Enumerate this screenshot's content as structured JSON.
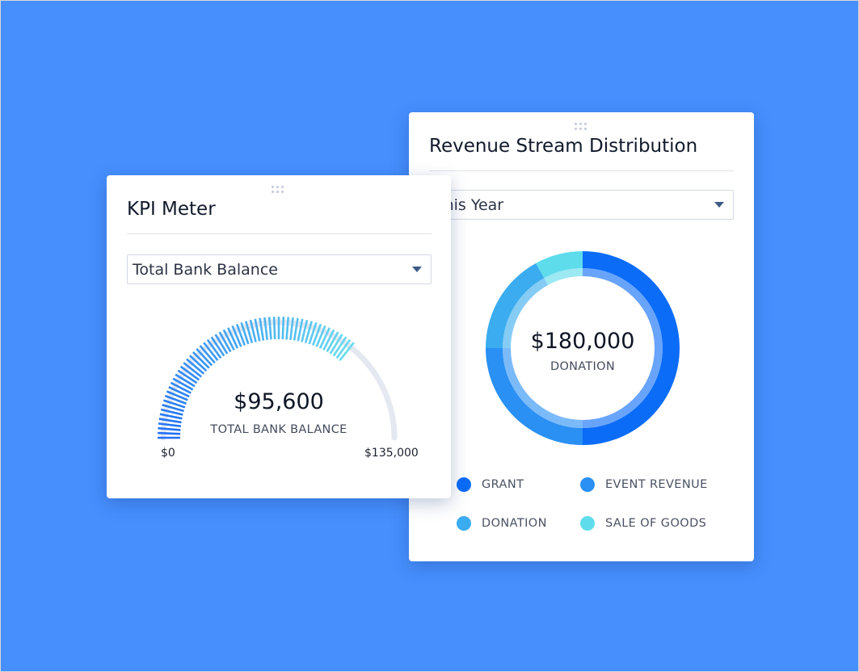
{
  "kpi_widget": {
    "title": "KPI Meter",
    "selector_value": "Total Bank Balance",
    "value_text": "$95,600",
    "value_label": "TOTAL BANK BALANCE",
    "min_label": "$0",
    "max_label": "$135,000",
    "min": 0,
    "max": 135000,
    "value": 95600,
    "colors": {
      "start": "#1f6ff5",
      "end": "#66dbef",
      "track": "#e4e8f0"
    }
  },
  "revenue_widget": {
    "title": "Revenue Stream Distribution",
    "period_value": "This Year",
    "center_value": "$180,000",
    "center_label": "DONATION",
    "legend": [
      {
        "label": "GRANT",
        "color": "#0b6cf8"
      },
      {
        "label": "EVENT REVENUE",
        "color": "#2a90f3"
      },
      {
        "label": "DONATION",
        "color": "#3aacef"
      },
      {
        "label": "SALE OF GOODS",
        "color": "#5fdcec"
      }
    ]
  },
  "chart_data": {
    "type": "pie",
    "categories": [
      "GRANT",
      "EVENT REVENUE",
      "DONATION",
      "SALE OF GOODS"
    ],
    "values": [
      50,
      25,
      17,
      8
    ],
    "colors": [
      "#0b6cf8",
      "#2a90f3",
      "#3aacef",
      "#5fdcec"
    ]
  }
}
